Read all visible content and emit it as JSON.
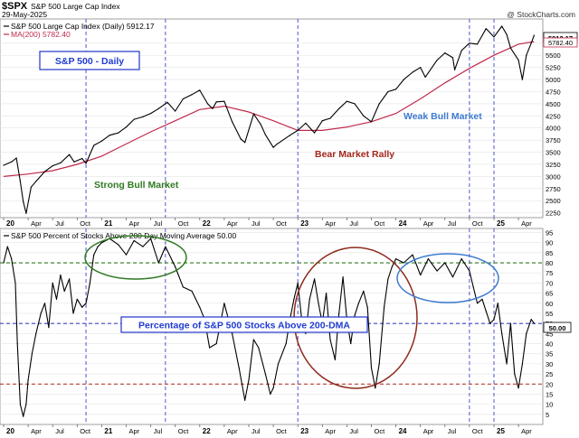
{
  "header": {
    "symbol": "$SPX",
    "index_name": "S&P 500 Large Cap Index",
    "date": "29-May-2025",
    "watermark": "@ StockCharts.com"
  },
  "colors": {
    "price": "#000000",
    "ma200": "#c0294a",
    "label_box": "#1f3bd1",
    "strong_bull": "#2f7a22",
    "bear_rally": "#a3261a",
    "weak_bull": "#3d7bd0",
    "vline": "#3a43c8",
    "green_dash": "#2d7a1c",
    "red_dash": "#b0241a",
    "blue_dash": "#3b46c8"
  },
  "x_axis": {
    "ticks": [
      {
        "label": "20",
        "year": true,
        "t": 0
      },
      {
        "label": "Apr",
        "year": false,
        "t": 0.25
      },
      {
        "label": "Jul",
        "year": false,
        "t": 0.5
      },
      {
        "label": "Oct",
        "year": false,
        "t": 0.75
      },
      {
        "label": "21",
        "year": true,
        "t": 1
      },
      {
        "label": "Apr",
        "year": false,
        "t": 1.25
      },
      {
        "label": "Jul",
        "year": false,
        "t": 1.5
      },
      {
        "label": "Oct",
        "year": false,
        "t": 1.75
      },
      {
        "label": "22",
        "year": true,
        "t": 2
      },
      {
        "label": "Apr",
        "year": false,
        "t": 2.25
      },
      {
        "label": "Jul",
        "year": false,
        "t": 2.5
      },
      {
        "label": "Oct",
        "year": false,
        "t": 2.75
      },
      {
        "label": "23",
        "year": true,
        "t": 3
      },
      {
        "label": "Apr",
        "year": false,
        "t": 3.25
      },
      {
        "label": "Jul",
        "year": false,
        "t": 3.5
      },
      {
        "label": "Oct",
        "year": false,
        "t": 3.75
      },
      {
        "label": "24",
        "year": true,
        "t": 4
      },
      {
        "label": "Apr",
        "year": false,
        "t": 4.25
      },
      {
        "label": "Jul",
        "year": false,
        "t": 4.5
      },
      {
        "label": "Oct",
        "year": false,
        "t": 4.75
      },
      {
        "label": "25",
        "year": true,
        "t": 5
      },
      {
        "label": "Apr",
        "year": false,
        "t": 5.25
      }
    ]
  },
  "chart_data": [
    {
      "type": "line",
      "title": "S&P 500 Large Cap Index (Daily) 5912.17",
      "ylim": [
        2150,
        6250
      ],
      "yticks": [
        2250,
        2500,
        2750,
        3000,
        3250,
        3500,
        3750,
        4000,
        4250,
        4500,
        4750,
        5000,
        5250,
        5500,
        5750
      ],
      "last_value_label": "5912.17",
      "ma_value_label": "5782.40",
      "series": [
        {
          "name": "S&P 500 Large Cap Index (Daily) 5912.17",
          "x": [
            0,
            0.08,
            0.13,
            0.17,
            0.2,
            0.23,
            0.28,
            0.33,
            0.42,
            0.5,
            0.58,
            0.67,
            0.72,
            0.8,
            0.84,
            0.92,
            1.0,
            1.08,
            1.17,
            1.25,
            1.33,
            1.42,
            1.5,
            1.58,
            1.67,
            1.75,
            1.83,
            1.92,
            2.0,
            2.08,
            2.13,
            2.17,
            2.25,
            2.33,
            2.42,
            2.46,
            2.55,
            2.62,
            2.67,
            2.75,
            2.79,
            2.92,
            3.0,
            3.08,
            3.17,
            3.25,
            3.33,
            3.42,
            3.5,
            3.58,
            3.67,
            3.75,
            3.83,
            3.92,
            4.0,
            4.08,
            4.17,
            4.25,
            4.3,
            4.42,
            4.5,
            4.58,
            4.6,
            4.67,
            4.75,
            4.83,
            4.92,
            5.0,
            5.08,
            5.13,
            5.17,
            5.25,
            5.29,
            5.33,
            5.38,
            5.41
          ],
          "values": [
            3230,
            3300,
            3380,
            2900,
            2480,
            2240,
            2780,
            2900,
            3100,
            3220,
            3280,
            3450,
            3300,
            3370,
            3270,
            3640,
            3730,
            3850,
            3900,
            4020,
            4180,
            4230,
            4300,
            4400,
            4530,
            4350,
            4600,
            4690,
            4780,
            4500,
            4400,
            4540,
            4550,
            4130,
            3770,
            3700,
            4290,
            4080,
            3860,
            3600,
            3670,
            3850,
            3950,
            4100,
            3900,
            4150,
            4200,
            4400,
            4550,
            4500,
            4250,
            4130,
            4500,
            4750,
            4800,
            5000,
            5150,
            5250,
            5050,
            5400,
            5550,
            5450,
            5200,
            5600,
            5750,
            5730,
            6050,
            5880,
            6100,
            5930,
            5650,
            5400,
            5000,
            5500,
            5750,
            5912
          ]
        },
        {
          "name": "MA(200) 5782.40",
          "x": [
            0,
            0.25,
            0.5,
            0.75,
            1.0,
            1.25,
            1.5,
            1.75,
            2.0,
            2.25,
            2.5,
            2.75,
            3.0,
            3.25,
            3.5,
            3.75,
            4.0,
            4.25,
            4.5,
            4.75,
            5.0,
            5.25,
            5.41
          ],
          "values": [
            3000,
            3050,
            3120,
            3250,
            3420,
            3670,
            3920,
            4150,
            4380,
            4450,
            4330,
            4150,
            3950,
            3950,
            4020,
            4130,
            4300,
            4600,
            4930,
            5230,
            5500,
            5730,
            5782
          ]
        }
      ]
    },
    {
      "type": "line",
      "title": "S&P 500 Percent of Stocks Above 200 Day Moving Average 50.00",
      "ylim": [
        0,
        97
      ],
      "yticks": [
        5,
        10,
        15,
        20,
        25,
        30,
        35,
        40,
        45,
        50,
        55,
        60,
        65,
        70,
        75,
        80,
        85,
        90,
        95
      ],
      "last_value_label": "50.00",
      "reference_lines": [
        80,
        50,
        20
      ],
      "series": [
        {
          "name": "S&P 500 Percent of Stocks Above 200 Day Moving Average 50.00",
          "x": [
            0,
            0.04,
            0.08,
            0.12,
            0.14,
            0.17,
            0.2,
            0.23,
            0.25,
            0.29,
            0.33,
            0.38,
            0.42,
            0.46,
            0.5,
            0.54,
            0.58,
            0.62,
            0.67,
            0.71,
            0.75,
            0.8,
            0.84,
            0.88,
            0.92,
            0.96,
            1.0,
            1.08,
            1.17,
            1.25,
            1.33,
            1.42,
            1.5,
            1.58,
            1.65,
            1.75,
            1.83,
            1.92,
            2.0,
            2.05,
            2.1,
            2.17,
            2.25,
            2.33,
            2.4,
            2.46,
            2.5,
            2.55,
            2.6,
            2.67,
            2.72,
            2.75,
            2.8,
            2.88,
            2.92,
            2.96,
            3.0,
            3.04,
            3.08,
            3.12,
            3.17,
            3.21,
            3.25,
            3.29,
            3.33,
            3.38,
            3.42,
            3.46,
            3.5,
            3.54,
            3.58,
            3.62,
            3.67,
            3.71,
            3.75,
            3.79,
            3.83,
            3.88,
            3.92,
            3.96,
            4.0,
            4.08,
            4.17,
            4.25,
            4.33,
            4.42,
            4.5,
            4.58,
            4.67,
            4.75,
            4.79,
            4.83,
            4.88,
            4.92,
            4.96,
            5.0,
            5.04,
            5.08,
            5.13,
            5.17,
            5.21,
            5.25,
            5.29,
            5.33,
            5.38,
            5.41
          ],
          "values": [
            80,
            88,
            82,
            70,
            40,
            10,
            4,
            10,
            22,
            35,
            45,
            55,
            60,
            48,
            70,
            62,
            74,
            66,
            72,
            55,
            62,
            58,
            60,
            70,
            84,
            88,
            90,
            92,
            89,
            84,
            91,
            88,
            92,
            80,
            88,
            78,
            68,
            66,
            58,
            52,
            38,
            40,
            60,
            45,
            28,
            12,
            22,
            42,
            38,
            25,
            15,
            18,
            30,
            40,
            52,
            62,
            70,
            52,
            45,
            62,
            72,
            60,
            50,
            65,
            42,
            32,
            55,
            73,
            52,
            40,
            54,
            60,
            66,
            58,
            28,
            18,
            30,
            58,
            72,
            78,
            82,
            80,
            84,
            74,
            82,
            76,
            80,
            73,
            82,
            76,
            68,
            60,
            62,
            56,
            50,
            52,
            60,
            45,
            30,
            50,
            25,
            18,
            30,
            45,
            52,
            50
          ]
        }
      ]
    }
  ],
  "annotations": {
    "label_box": "S&P 500 - Daily",
    "strong_bull": "Strong Bull Market",
    "bear_rally": "Bear Market Rally",
    "weak_bull": "Weak Bull Market",
    "pct_label": "Percentage of S&P 500 Stocks Above 200-DMA",
    "period_lines_t": [
      0.84,
      1.65,
      3.0,
      4.75,
      5.0
    ]
  }
}
